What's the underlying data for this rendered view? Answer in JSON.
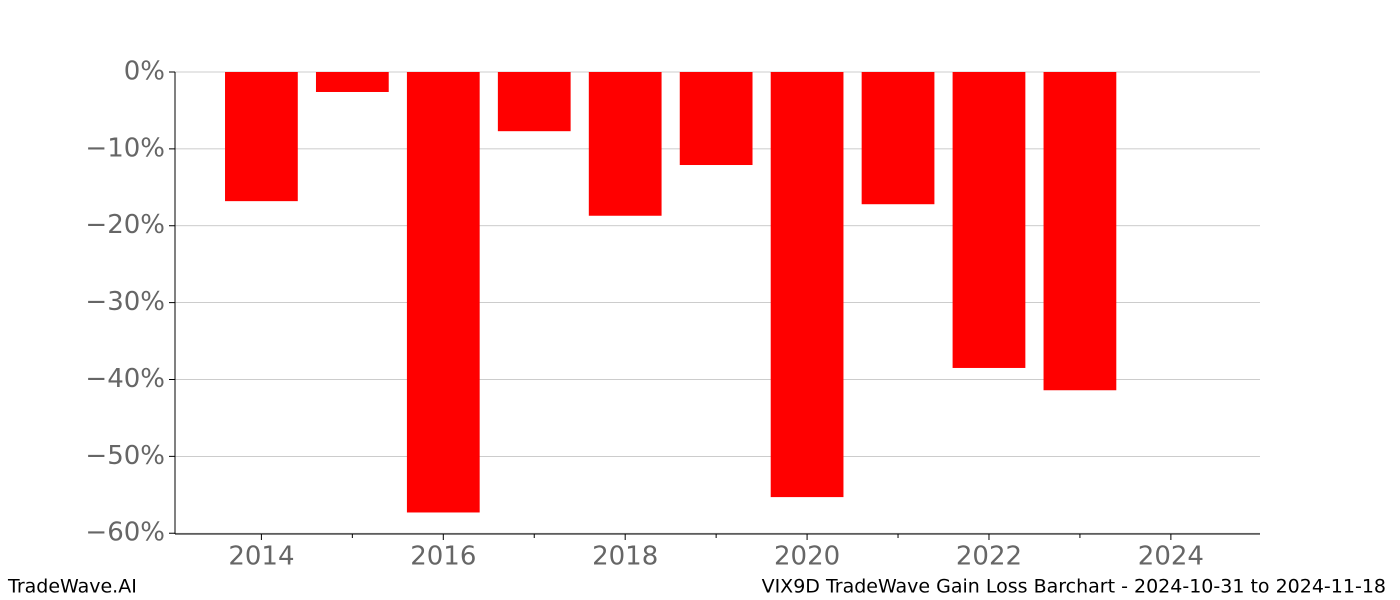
{
  "chart_data": {
    "type": "bar",
    "title": "VIX9D TradeWave Gain Loss Barchart - 2024-10-31 to 2024-11-18",
    "brand": "TradeWave.AI",
    "x": [
      2014,
      2015,
      2016,
      2017,
      2018,
      2019,
      2020,
      2021,
      2022,
      2023
    ],
    "values": [
      -16.8,
      -2.6,
      -57.3,
      -7.7,
      -18.7,
      -12.1,
      -55.3,
      -17.2,
      -38.5,
      -41.4
    ],
    "color": "#ff0000",
    "xlim": [
      2013.05,
      2024.98
    ],
    "xticks": [
      2014,
      2016,
      2018,
      2020,
      2022,
      2024
    ],
    "xminorticks": [
      2015,
      2017,
      2019,
      2021,
      2023
    ],
    "ylim": [
      -60.1,
      0
    ],
    "yticks": [
      {
        "value": 0,
        "label": "0%"
      },
      {
        "value": -10,
        "label": "−10%"
      },
      {
        "value": -20,
        "label": "−20%"
      },
      {
        "value": -30,
        "label": "−30%"
      },
      {
        "value": -40,
        "label": "−40%"
      },
      {
        "value": -50,
        "label": "−50%"
      },
      {
        "value": -60,
        "label": "−60%"
      }
    ],
    "grid": true
  }
}
